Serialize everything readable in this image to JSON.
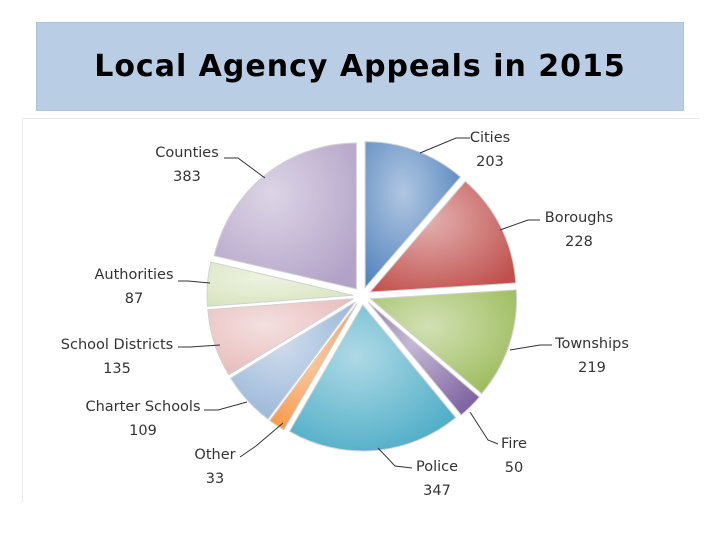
{
  "title": "Local Agency Appeals in 2015",
  "chart_data": {
    "type": "pie",
    "title": "Local Agency Appeals in 2015",
    "categories": [
      "Cities",
      "Boroughs",
      "Townships",
      "Fire",
      "Police",
      "Other",
      "Charter Schools",
      "School Districts",
      "Authorities",
      "Counties"
    ],
    "values": [
      203,
      228,
      219,
      50,
      347,
      33,
      109,
      135,
      87,
      383
    ],
    "labels": [
      "203",
      "228",
      "219",
      "50",
      "347",
      "33",
      "109",
      "135",
      "87",
      "383"
    ],
    "colors": [
      "#4f81bd",
      "#c0504d",
      "#9bbb59",
      "#8064a2",
      "#4bacc6",
      "#f79646",
      "#95b3d7",
      "#e6b9b8",
      "#d7e4bd",
      "#b3a2c7"
    ],
    "legend": "none",
    "exploded": true
  }
}
